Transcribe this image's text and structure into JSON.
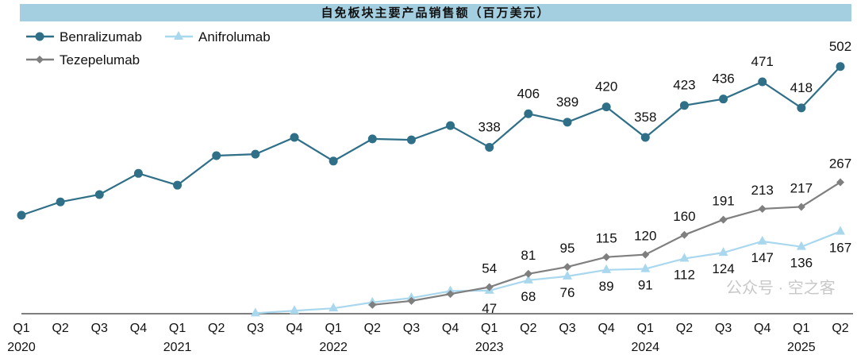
{
  "chart_data": {
    "type": "line",
    "title": "自免板块主要产品销售额（百万美元）",
    "categories": [
      "Q1",
      "Q2",
      "Q3",
      "Q4",
      "Q1",
      "Q2",
      "Q3",
      "Q4",
      "Q1",
      "Q2",
      "Q3",
      "Q4",
      "Q1",
      "Q2",
      "Q3",
      "Q4",
      "Q1",
      "Q2",
      "Q3",
      "Q4",
      "Q1",
      "Q2"
    ],
    "years": [
      {
        "label": "2020",
        "index": 0
      },
      {
        "label": "2021",
        "index": 4
      },
      {
        "label": "2022",
        "index": 8
      },
      {
        "label": "2023",
        "index": 12
      },
      {
        "label": "2024",
        "index": 16
      },
      {
        "label": "2025",
        "index": 20
      }
    ],
    "ylim": [
      0,
      510
    ],
    "grid": false,
    "legend": "top-left",
    "series": [
      {
        "name": "Benralizumab",
        "color": "#2f6f87",
        "marker": "circle",
        "values": [
          200,
          227,
          242,
          285,
          261,
          321,
          324,
          358,
          310,
          355,
          353,
          382,
          338,
          406,
          389,
          420,
          358,
          423,
          436,
          471,
          418,
          502
        ],
        "labeled": [
          12,
          13,
          14,
          15,
          16,
          17,
          18,
          19,
          20,
          21
        ]
      },
      {
        "name": "Anifrolumab",
        "color": "#a9d8ee",
        "marker": "triangle",
        "values": [
          null,
          null,
          null,
          null,
          null,
          null,
          1,
          6,
          11,
          23,
          32,
          46,
          47,
          68,
          76,
          89,
          91,
          112,
          124,
          147,
          136,
          167
        ],
        "labeled": [
          12,
          13,
          14,
          15,
          16,
          17,
          18,
          19,
          20,
          21
        ]
      },
      {
        "name": "Tezepelumab",
        "color": "#7f7f7f",
        "marker": "diamond",
        "values": [
          null,
          null,
          null,
          null,
          null,
          null,
          null,
          null,
          null,
          18,
          26,
          40,
          54,
          81,
          95,
          115,
          120,
          160,
          191,
          213,
          217,
          267
        ],
        "labeled": [
          12,
          13,
          14,
          15,
          16,
          17,
          18,
          19,
          20,
          21
        ]
      }
    ]
  },
  "watermark": "公众号 · 空之客"
}
